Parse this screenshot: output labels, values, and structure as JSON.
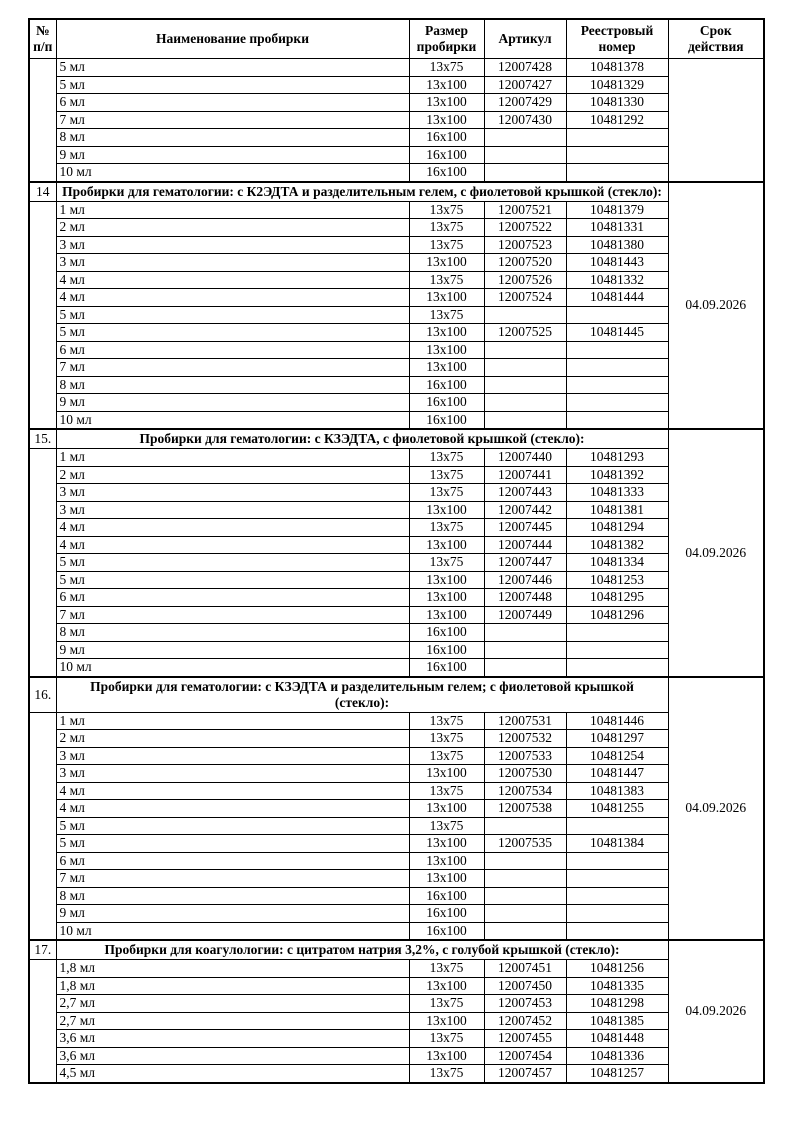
{
  "table": {
    "columns": {
      "num": "№ п/п",
      "name": "Наименование пробирки",
      "size": "Размер пробирки",
      "article": "Артикул",
      "registry": "Реестровый номер",
      "validity": "Срок действия"
    },
    "sections": [
      {
        "num": "",
        "title": "",
        "validity": "",
        "rows": [
          {
            "name": "5 мл",
            "size": "13x75",
            "article": "12007428",
            "registry": "10481378"
          },
          {
            "name": "5 мл",
            "size": "13x100",
            "article": "12007427",
            "registry": "10481329"
          },
          {
            "name": "6 мл",
            "size": "13x100",
            "article": "12007429",
            "registry": "10481330"
          },
          {
            "name": "7 мл",
            "size": "13x100",
            "article": "12007430",
            "registry": "10481292"
          },
          {
            "name": "8 мл",
            "size": "16x100",
            "article": "",
            "registry": ""
          },
          {
            "name": "9 мл",
            "size": "16x100",
            "article": "",
            "registry": ""
          },
          {
            "name": "10 мл",
            "size": "16x100",
            "article": "",
            "registry": ""
          }
        ]
      },
      {
        "num": "14",
        "title": "Пробирки для гематологии: с К2ЭДТА и разделительным гелем, с фиолетовой крышкой (стекло):",
        "validity": "04.09.2026",
        "rows": [
          {
            "name": "1 мл",
            "size": "13x75",
            "article": "12007521",
            "registry": "10481379"
          },
          {
            "name": "2 мл",
            "size": "13x75",
            "article": "12007522",
            "registry": "10481331"
          },
          {
            "name": "3 мл",
            "size": "13x75",
            "article": "12007523",
            "registry": "10481380"
          },
          {
            "name": "3 мл",
            "size": "13x100",
            "article": "12007520",
            "registry": "10481443"
          },
          {
            "name": "4 мл",
            "size": "13x75",
            "article": "12007526",
            "registry": "10481332"
          },
          {
            "name": "4 мл",
            "size": "13x100",
            "article": "12007524",
            "registry": "10481444"
          },
          {
            "name": "5 мл",
            "size": "13x75",
            "article": "",
            "registry": ""
          },
          {
            "name": "5 мл",
            "size": "13x100",
            "article": "12007525",
            "registry": "10481445"
          },
          {
            "name": "6 мл",
            "size": "13x100",
            "article": "",
            "registry": ""
          },
          {
            "name": "7 мл",
            "size": "13x100",
            "article": "",
            "registry": ""
          },
          {
            "name": "8 мл",
            "size": "16x100",
            "article": "",
            "registry": ""
          },
          {
            "name": "9 мл",
            "size": "16x100",
            "article": "",
            "registry": ""
          },
          {
            "name": "10 мл",
            "size": "16x100",
            "article": "",
            "registry": ""
          }
        ]
      },
      {
        "num": "15.",
        "title": "Пробирки для гематологии: с КЗЭДТА, с фиолетовой крышкой (стекло):",
        "validity": "04.09.2026",
        "rows": [
          {
            "name": "1 мл",
            "size": "13x75",
            "article": "12007440",
            "registry": "10481293"
          },
          {
            "name": "2 мл",
            "size": "13x75",
            "article": "12007441",
            "registry": "10481392"
          },
          {
            "name": "3 мл",
            "size": "13x75",
            "article": "12007443",
            "registry": "10481333"
          },
          {
            "name": "3 мл",
            "size": "13x100",
            "article": "12007442",
            "registry": "10481381"
          },
          {
            "name": "4 мл",
            "size": "13x75",
            "article": "12007445",
            "registry": "10481294"
          },
          {
            "name": "4 мл",
            "size": "13x100",
            "article": "12007444",
            "registry": "10481382"
          },
          {
            "name": "5 мл",
            "size": "13x75",
            "article": "12007447",
            "registry": "10481334"
          },
          {
            "name": "5 мл",
            "size": "13x100",
            "article": "12007446",
            "registry": "10481253"
          },
          {
            "name": "6 мл",
            "size": "13x100",
            "article": "12007448",
            "registry": "10481295"
          },
          {
            "name": "7 мл",
            "size": "13x100",
            "article": "12007449",
            "registry": "10481296"
          },
          {
            "name": "8 мл",
            "size": "16x100",
            "article": "",
            "registry": ""
          },
          {
            "name": "9 мл",
            "size": "16x100",
            "article": "",
            "registry": ""
          },
          {
            "name": "10 мл",
            "size": "16x100",
            "article": "",
            "registry": ""
          }
        ]
      },
      {
        "num": "16.",
        "title": "Пробирки для гематологии: с КЗЭДТА и разделительным гелем; с фиолетовой крышкой (стекло):",
        "validity": "04.09.2026",
        "rows": [
          {
            "name": "1 мл",
            "size": "13x75",
            "article": "12007531",
            "registry": "10481446"
          },
          {
            "name": "2 мл",
            "size": "13x75",
            "article": "12007532",
            "registry": "10481297"
          },
          {
            "name": "3 мл",
            "size": "13x75",
            "article": "12007533",
            "registry": "10481254"
          },
          {
            "name": "3 мл",
            "size": "13x100",
            "article": "12007530",
            "registry": "10481447"
          },
          {
            "name": "4 мл",
            "size": "13x75",
            "article": "12007534",
            "registry": "10481383"
          },
          {
            "name": "4 мл",
            "size": "13x100",
            "article": "12007538",
            "registry": "10481255"
          },
          {
            "name": "5 мл",
            "size": "13x75",
            "article": "",
            "registry": ""
          },
          {
            "name": "5 мл",
            "size": "13x100",
            "article": "12007535",
            "registry": "10481384"
          },
          {
            "name": "6 мл",
            "size": "13x100",
            "article": "",
            "registry": ""
          },
          {
            "name": "7 мл",
            "size": "13x100",
            "article": "",
            "registry": ""
          },
          {
            "name": "8 мл",
            "size": "16x100",
            "article": "",
            "registry": ""
          },
          {
            "name": "9 мл",
            "size": "16x100",
            "article": "",
            "registry": ""
          },
          {
            "name": "10 мл",
            "size": "16x100",
            "article": "",
            "registry": ""
          }
        ]
      },
      {
        "num": "17.",
        "title": "Пробирки для коагулологии: с цитратом натрия 3,2%, с голубой крышкой (стекло):",
        "validity": "04.09.2026",
        "rows": [
          {
            "name": "1,8 мл",
            "size": "13x75",
            "article": "12007451",
            "registry": "10481256"
          },
          {
            "name": "1,8 мл",
            "size": "13x100",
            "article": "12007450",
            "registry": "10481335"
          },
          {
            "name": "2,7 мл",
            "size": "13x75",
            "article": "12007453",
            "registry": "10481298"
          },
          {
            "name": "2,7 мл",
            "size": "13x100",
            "article": "12007452",
            "registry": "10481385"
          },
          {
            "name": "3,6 мл",
            "size": "13x75",
            "article": "12007455",
            "registry": "10481448"
          },
          {
            "name": "3,6 мл",
            "size": "13x100",
            "article": "12007454",
            "registry": "10481336"
          },
          {
            "name": "4,5 мл",
            "size": "13x75",
            "article": "12007457",
            "registry": "10481257"
          }
        ]
      }
    ]
  }
}
